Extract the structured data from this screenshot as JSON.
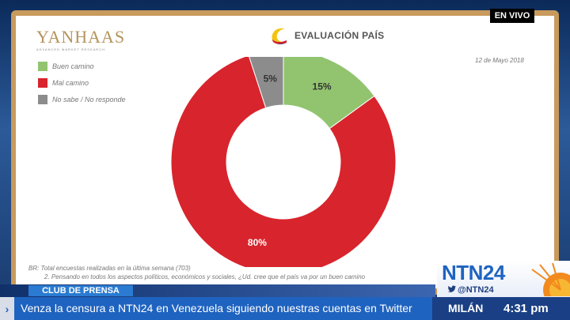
{
  "broadcast": {
    "live_label": "EN VIVO",
    "program_label": "CLUB DE PRENSA",
    "ticker_text": "Venza la censura a NTN24 en Venezuela siguiendo nuestras cuentas en Twitter",
    "city": "MILÁN",
    "time": "4:31 pm",
    "channel_name": "NTN24",
    "channel_handle": "@NTN24",
    "colors": {
      "brand_blue": "#1f63c0",
      "frame": "#c89a5c"
    }
  },
  "slide": {
    "logo_text": "YANHAAS",
    "logo_tagline": "ADVANCED MARKET RESEARCH",
    "title": "EVALUACIÓN PAÍS",
    "date": "12 de Mayo 2018",
    "footnote_line1": "BR: Total encuestas realizadas en la última semana (703)",
    "footnote_line2": "2. Pensando en todos los aspectos políticos, económicos y sociales, ¿Ud. cree que el país va por un buen camino"
  },
  "chart_data": {
    "type": "pie",
    "donut": true,
    "title": "EVALUACIÓN PAÍS",
    "legend_position": "top-left",
    "slices": [
      {
        "label": "Buen camino",
        "value": 15,
        "display": "15%",
        "color": "#92c470"
      },
      {
        "label": "Mal camino",
        "value": 80,
        "display": "80%",
        "color": "#d8242c"
      },
      {
        "label": "No sabe / No responde",
        "value": 5,
        "display": "5%",
        "color": "#8c8c8c"
      }
    ]
  }
}
